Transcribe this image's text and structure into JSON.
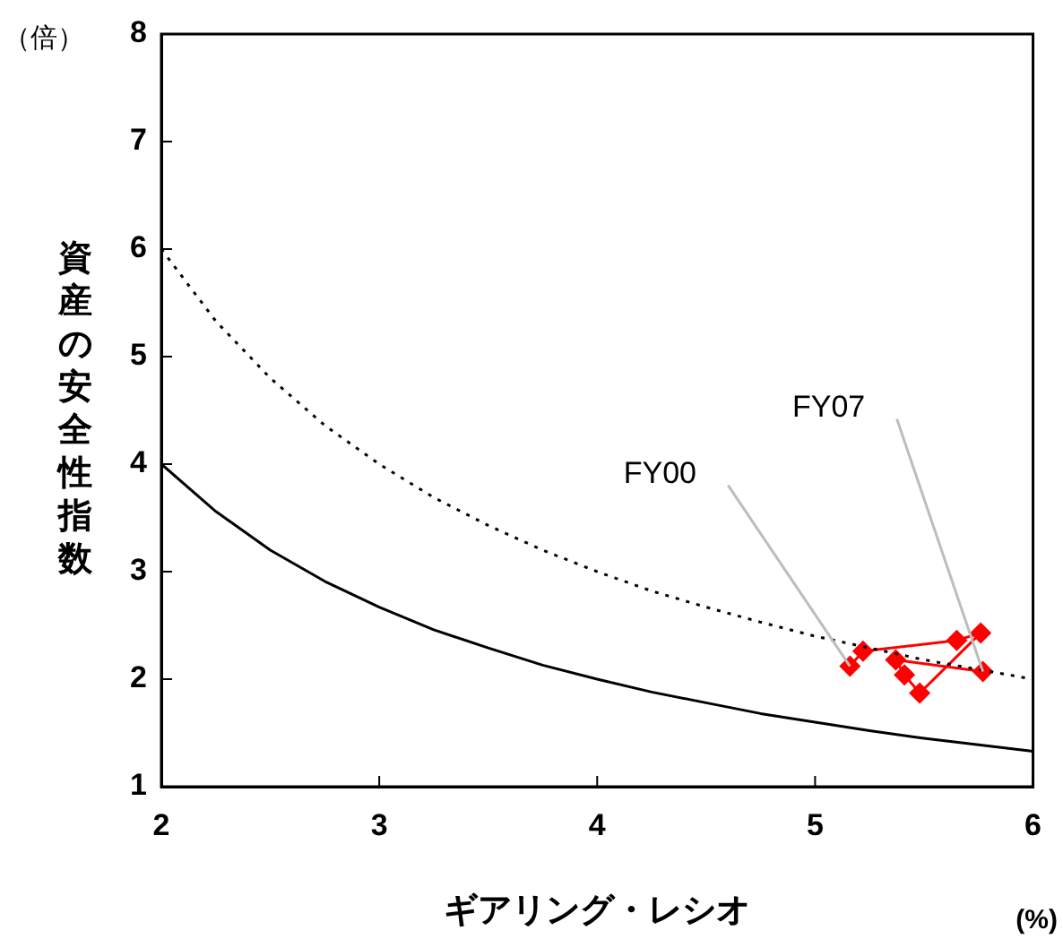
{
  "chart_data": {
    "type": "line",
    "xlabel": "ギアリング・レシオ",
    "ylabel": "資産の安全性指数",
    "xlim": [
      2,
      6
    ],
    "xticks": [
      2,
      3,
      4,
      5,
      6
    ],
    "ylim": [
      1,
      8
    ],
    "yticks": [
      1,
      2,
      3,
      4,
      5,
      6,
      7,
      8
    ],
    "grid": false,
    "legend": false,
    "series": [
      {
        "color": "#000000",
        "line_style": "solid",
        "marker": "none",
        "x": [
          2,
          2.25,
          2.5,
          2.75,
          3,
          3.25,
          3.5,
          3.75,
          4,
          4.25,
          4.5,
          4.75,
          5,
          5.25,
          5.5,
          5.75,
          6
        ],
        "values": [
          4,
          3.56,
          3.2,
          2.91,
          2.67,
          2.46,
          2.29,
          2.13,
          2,
          1.88,
          1.78,
          1.68,
          1.6,
          1.52,
          1.45,
          1.39,
          1.33
        ]
      },
      {
        "color": "#000000",
        "line_style": "dotted",
        "marker": "none",
        "x": [
          2,
          2.25,
          2.5,
          2.75,
          3,
          3.25,
          3.5,
          3.75,
          4,
          4.25,
          4.5,
          4.75,
          5,
          5.25,
          5.5,
          5.75,
          6
        ],
        "values": [
          6,
          5.33,
          4.8,
          4.36,
          4,
          3.69,
          3.43,
          3.2,
          3,
          2.82,
          2.67,
          2.53,
          2.4,
          2.29,
          2.18,
          2.09,
          2
        ]
      },
      {
        "color": "#ff0000",
        "line_style": "solid",
        "marker": "diamond",
        "x": [
          5.16,
          5.22,
          5.65,
          5.76,
          5.48,
          5.41,
          5.37,
          5.77
        ],
        "values": [
          2.12,
          2.26,
          2.36,
          2.43,
          1.87,
          2.04,
          2.18,
          2.07
        ]
      }
    ],
    "annotations": [
      {
        "text": "FY00",
        "x": 5.16,
        "y": 2.12
      },
      {
        "text": "FY07",
        "x": 5.77,
        "y": 2.07
      },
      "（倍）",
      "(%)"
    ]
  }
}
